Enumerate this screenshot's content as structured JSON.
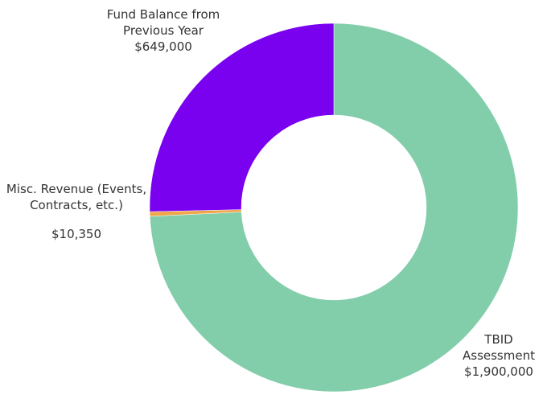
{
  "chart_data": {
    "type": "donut",
    "categories": [
      "TBID Assessment",
      "Misc. Revenue (Events, Contracts, etc.)",
      "Fund Balance from Previous Year"
    ],
    "values": [
      1900000,
      10350,
      649000
    ],
    "value_labels": [
      "$1,900,000",
      "$10,350",
      "$649,000"
    ],
    "colors": [
      "#82cdaa",
      "#f0a64a",
      "#7a00f0"
    ]
  }
}
